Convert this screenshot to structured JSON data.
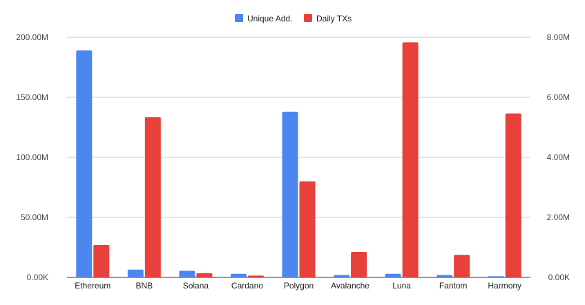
{
  "chart_data": {
    "type": "bar",
    "categories": [
      "Ethereum",
      "BNB",
      "Solana",
      "Cardano",
      "Polygon",
      "Avalanche",
      "Luna",
      "Fantom",
      "Harmony"
    ],
    "series": [
      {
        "name": "Unique Add.",
        "axis": "left",
        "color": "#4e86ef",
        "values": [
          189000000,
          6500000,
          5500000,
          3000000,
          138000000,
          2000000,
          3000000,
          2000000,
          1000000
        ]
      },
      {
        "name": "Daily TXs",
        "axis": "right",
        "color": "#e8413c",
        "values": [
          1080000,
          5340000,
          140000,
          60000,
          3200000,
          850000,
          7830000,
          750000,
          5460000
        ]
      }
    ],
    "yleft": {
      "ylim": [
        0,
        200000000
      ],
      "ticks": [
        "0.00K",
        "50.00M",
        "100.00M",
        "150.00M",
        "200.00M"
      ]
    },
    "yright": {
      "ylim": [
        0,
        8000000
      ],
      "ticks": [
        "0.00K",
        "2.00M",
        "4.00M",
        "6.00M",
        "8.00M"
      ]
    },
    "grid": true,
    "legend": "top-center"
  }
}
